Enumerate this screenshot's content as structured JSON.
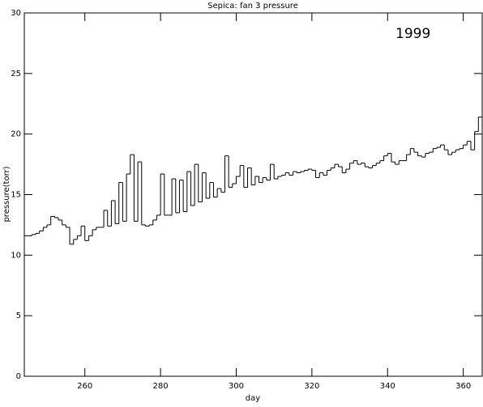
{
  "chart_data": {
    "type": "step",
    "title": "Sepica: fan 3 pressure",
    "x_label": "day",
    "y_label": "pressure(torr)",
    "annotation": "1999",
    "xlim": [
      244,
      365
    ],
    "ylim": [
      0,
      30
    ],
    "xticks": [
      260,
      280,
      300,
      320,
      340,
      360
    ],
    "yticks": [
      0,
      5,
      10,
      15,
      20,
      25,
      30
    ],
    "color": "#000000",
    "x": [
      244,
      245,
      246,
      247,
      248,
      249,
      250,
      251,
      252,
      253,
      254,
      255,
      256,
      257,
      258,
      259,
      260,
      261,
      262,
      263,
      264,
      265,
      266,
      267,
      268,
      269,
      270,
      271,
      272,
      273,
      274,
      275,
      276,
      277,
      278,
      279,
      280,
      281,
      282,
      283,
      284,
      285,
      286,
      287,
      288,
      289,
      290,
      291,
      292,
      293,
      294,
      295,
      296,
      297,
      298,
      299,
      300,
      301,
      302,
      303,
      304,
      305,
      306,
      307,
      308,
      309,
      310,
      311,
      312,
      313,
      314,
      315,
      316,
      317,
      318,
      319,
      320,
      321,
      322,
      323,
      324,
      325,
      326,
      327,
      328,
      329,
      330,
      331,
      332,
      333,
      334,
      335,
      336,
      337,
      338,
      339,
      340,
      341,
      342,
      343,
      344,
      345,
      346,
      347,
      348,
      349,
      350,
      351,
      352,
      353,
      354,
      355,
      356,
      357,
      358,
      359,
      360,
      361,
      362,
      363,
      364
    ],
    "values": [
      11.6,
      11.6,
      11.7,
      11.8,
      12.0,
      12.3,
      12.5,
      13.2,
      13.1,
      12.9,
      12.5,
      12.3,
      10.9,
      11.3,
      11.6,
      12.4,
      11.2,
      11.6,
      12.1,
      12.3,
      12.3,
      13.7,
      12.4,
      14.5,
      12.6,
      16.0,
      12.8,
      16.7,
      18.3,
      12.8,
      17.7,
      12.5,
      12.4,
      12.5,
      12.9,
      13.3,
      16.7,
      13.3,
      13.3,
      16.3,
      13.5,
      16.2,
      13.6,
      16.9,
      14.1,
      17.5,
      14.4,
      16.8,
      14.7,
      16.0,
      14.8,
      15.5,
      15.2,
      18.2,
      15.6,
      15.9,
      16.5,
      17.4,
      15.6,
      17.2,
      15.8,
      16.5,
      16.0,
      16.4,
      16.2,
      17.5,
      16.3,
      16.5,
      16.6,
      16.8,
      16.6,
      16.9,
      16.8,
      16.9,
      17.0,
      17.1,
      17.0,
      16.4,
      16.8,
      16.6,
      17.0,
      17.2,
      17.5,
      17.3,
      16.8,
      17.1,
      17.6,
      17.8,
      17.5,
      17.6,
      17.3,
      17.2,
      17.4,
      17.6,
      17.8,
      18.2,
      18.4,
      17.7,
      17.5,
      17.8,
      17.8,
      18.3,
      18.8,
      18.5,
      18.2,
      18.1,
      18.4,
      18.5,
      18.8,
      18.9,
      19.1,
      18.7,
      18.3,
      18.5,
      18.7,
      18.8,
      19.1,
      19.4,
      18.7,
      20.2,
      21.4
    ]
  }
}
